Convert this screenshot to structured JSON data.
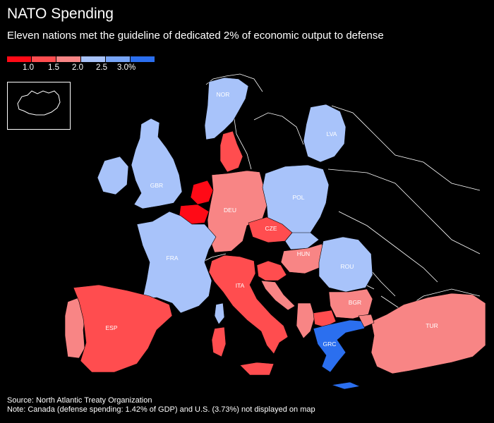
{
  "title": "NATO Spending",
  "subtitle": "Eleven nations met the guideline of dedicated 2% of economic output to defense",
  "legend": {
    "colors": [
      "#ff0a16",
      "#ff4d4f",
      "#f88585",
      "#a8c3fa",
      "#78a5f8",
      "#2b6fef"
    ],
    "ticks": [
      "1.0",
      "1.5",
      "2.0",
      "2.5",
      "3.0%"
    ]
  },
  "countries": {
    "nor": "NOR",
    "lva": "LVA",
    "gbr": "GBR",
    "pol": "POL",
    "deu": "DEU",
    "cze": "CZE",
    "fra": "FRA",
    "hun": "HUN",
    "rou": "ROU",
    "ita": "ITA",
    "bgr": "BGR",
    "esp": "ESP",
    "tur": "TUR",
    "grc": "GRC"
  },
  "footer": {
    "source": "Source: North Atlantic Treaty Organization",
    "note": "Note: Canada (defense spending: 1.42% of GDP) and U.S. (3.73%) not displayed on map"
  }
}
